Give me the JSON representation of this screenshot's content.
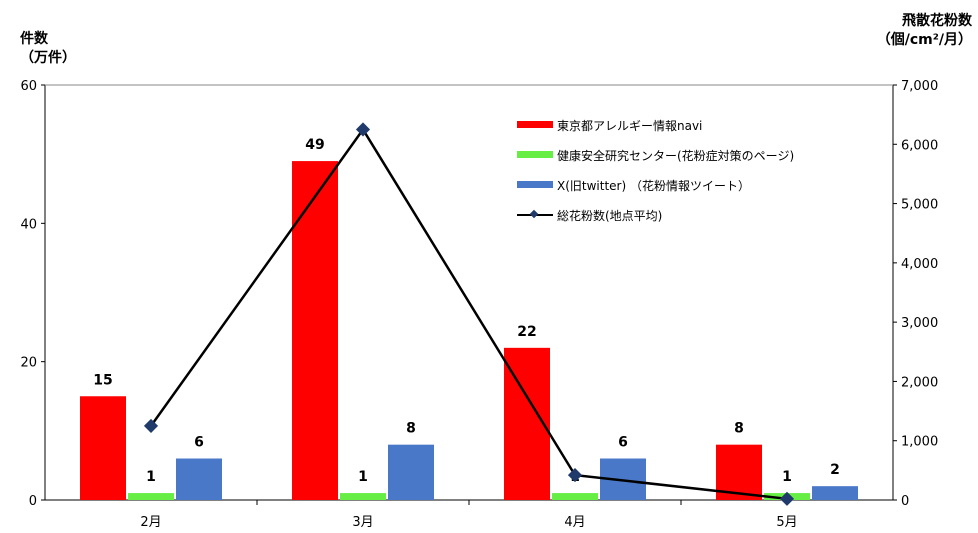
{
  "chart_data": {
    "type": "bar",
    "categories": [
      "2月",
      "3月",
      "4月",
      "5月"
    ],
    "ylabel_left_line1": "件数",
    "ylabel_left_line2": "（万件）",
    "ylabel_right_line1": "飛散花粉数",
    "ylabel_right_line2": "（個/cm²/月）",
    "ylim_left": [
      0,
      60
    ],
    "ylim_right": [
      0,
      7000
    ],
    "yticks_left": [
      "0",
      "20",
      "40",
      "60"
    ],
    "yticks_right": [
      "0",
      "1,000",
      "2,000",
      "3,000",
      "4,000",
      "5,000",
      "6,000",
      "7,000"
    ],
    "series": [
      {
        "name": "東京都アレルギー情報navi",
        "type": "bar",
        "color": "#ff0000",
        "values": [
          15,
          49,
          22,
          8
        ],
        "labels": [
          "15",
          "49",
          "22",
          "8"
        ]
      },
      {
        "name": "健康安全研究センター(花粉症対策のページ)",
        "type": "bar",
        "color": "#66ee44",
        "values": [
          1,
          1,
          1,
          1
        ],
        "labels": [
          "1",
          "1",
          "1",
          "1"
        ]
      },
      {
        "name": "X(旧twitter) （花粉情報ツイート）",
        "type": "bar",
        "color": "#4a78c8",
        "values": [
          6,
          8,
          6,
          2
        ],
        "labels": [
          "6",
          "8",
          "6",
          "2"
        ]
      },
      {
        "name": "総花粉数(地点平均)",
        "type": "line",
        "axis": "right",
        "color": "#000000",
        "marker_color": "#1f3a6b",
        "values": [
          1250,
          6250,
          420,
          20
        ]
      }
    ],
    "legend_position": "top-right",
    "grid": false
  }
}
